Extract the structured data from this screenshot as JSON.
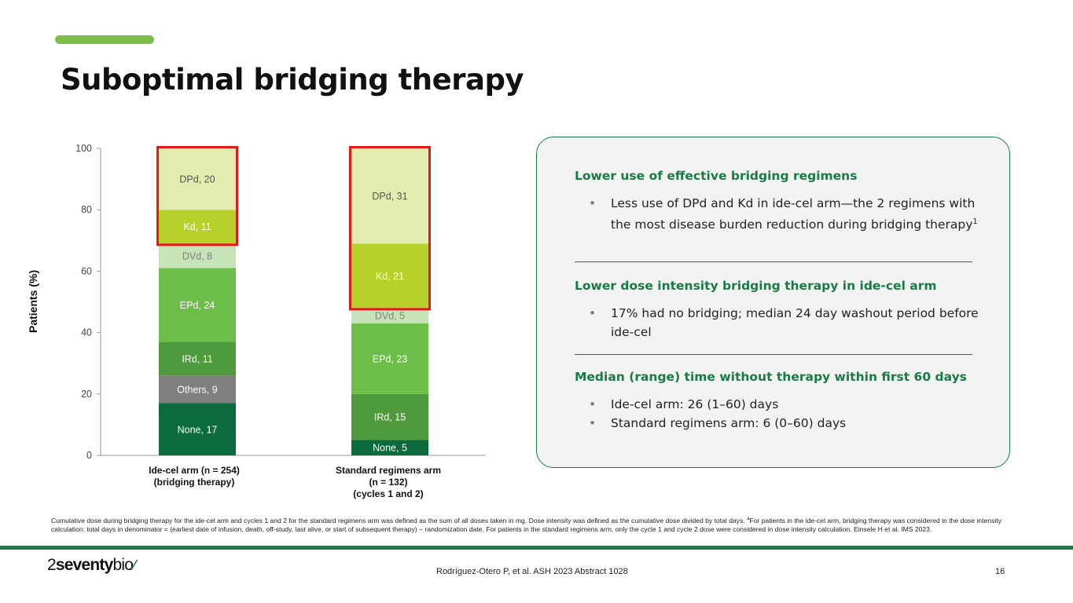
{
  "slide": {
    "title": "Suboptimal bridging therapy",
    "page_number": "16",
    "citation": "Rodríguez-Otero P, et al. ASH 2023 Abstract 1028",
    "logo_text": {
      "prefix": "2",
      "bold": "seventy",
      "suffix": "bio"
    },
    "footnote_parts": [
      "Cumulative dose during bridging therapy for the ide-cel arm and cycles 1 and 2 for the standard regimens arm was defined as the sum of all doses taken in mg. Dose intensity was defined as the cumulative dose divided by total days. ",
      "a",
      "For patients in the ide-cel arm, bridging therapy was considered in the dose intensity calculation: total days in denominator = (earliest date of infusion, death, off-study, last alive, or start of subsequent therapy) − randomization date. For patients in the standard regimens arm, only the cycle 1 and cycle 2 dose were considered in dose intensity calculation. Einsele H et al. IMS 2023."
    ]
  },
  "colors": {
    "accent": "#7cc04b",
    "brand_green": "#1a7a45",
    "highlight_box": "#e0191b"
  },
  "panel": {
    "sections": [
      {
        "heading": "Lower use of effective bridging regimens",
        "bullets": [
          [
            "Less use of DPd and Kd in ide-cel arm—the 2 regimens with the most disease burden reduction during bridging therapy",
            "1"
          ]
        ]
      },
      {
        "heading": "Lower dose intensity bridging therapy in ide-cel arm",
        "bullets": [
          [
            "17% had no bridging; median 24 day washout period before ide-cel",
            ""
          ]
        ]
      },
      {
        "heading": "Median (range) time without therapy within first 60 days",
        "bullets": [
          [
            "Ide-cel arm: 26 (1–60) days",
            ""
          ],
          [
            "Standard regimens arm: 6 (0–60) days",
            ""
          ]
        ]
      }
    ]
  },
  "chart_data": {
    "type": "bar",
    "stacked": true,
    "ylabel": "Patients (%)",
    "ylim": [
      0,
      100
    ],
    "yticks": [
      0,
      20,
      40,
      60,
      80,
      100
    ],
    "categories": [
      [
        "Ide-cel arm (n = 254)",
        "(bridging therapy)"
      ],
      [
        "Standard regimens arm",
        "(n = 132)",
        "(cycles 1 and 2)"
      ]
    ],
    "series": [
      {
        "name": "None",
        "color": "#0b6b3d",
        "label_color": "#ffffff",
        "values": [
          17,
          5
        ]
      },
      {
        "name": "Others",
        "color": "#7f7f7f",
        "label_color": "#ffffff",
        "values": [
          9,
          0
        ]
      },
      {
        "name": "IRd",
        "color": "#4e9a3c",
        "label_color": "#ffffff",
        "values": [
          11,
          15
        ]
      },
      {
        "name": "EPd",
        "color": "#6dbd4a",
        "label_color": "#ffffff",
        "values": [
          24,
          23
        ]
      },
      {
        "name": "DVd",
        "color": "#c6e4b8",
        "label_color": "#7f7f7f",
        "values": [
          8,
          5
        ]
      },
      {
        "name": "Kd",
        "color": "#b8d12a",
        "label_color": "#ffffff",
        "values": [
          11,
          21
        ]
      },
      {
        "name": "DPd",
        "color": "#e3ecae",
        "label_color": "#555555",
        "values": [
          20,
          31
        ]
      }
    ],
    "highlight_series": [
      "Kd",
      "DPd"
    ],
    "grid": false
  }
}
